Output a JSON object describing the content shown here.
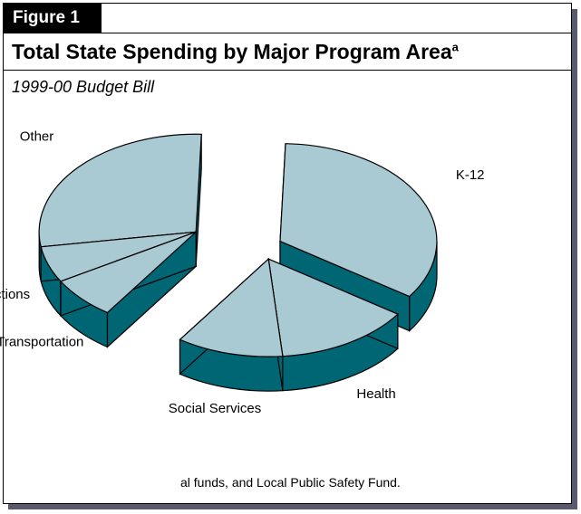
{
  "figure_label": "Figure 1",
  "title": "Total State Spending by Major Program Area",
  "title_superscript": "a",
  "subtitle": "1999-00 Budget Bill",
  "footnote": "al funds, and Local Public Safety Fund.",
  "colors": {
    "top": "#a9cad3",
    "side": "#006674",
    "edge": "#000000",
    "shadow": "#5a5a6e"
  },
  "chart_data": {
    "type": "pie",
    "style": "3d-exploded",
    "title": "Total State Spending by Major Program Area",
    "subtitle": "1999-00 Budget Bill",
    "slices": [
      {
        "label": "K-12",
        "value": 34
      },
      {
        "label": "Health",
        "value": 14
      },
      {
        "label": "Social Services",
        "value": 11
      },
      {
        "label": "Transportation",
        "value": 7
      },
      {
        "label": "Corrections",
        "value": 6
      },
      {
        "label": "Other",
        "value": 28
      }
    ]
  }
}
